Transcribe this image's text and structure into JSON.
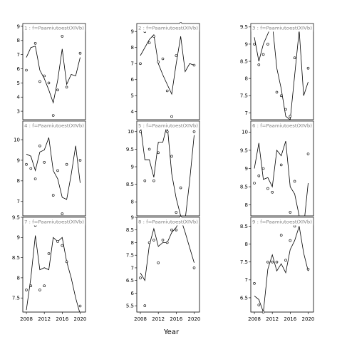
{
  "chart_data": {
    "type": "scatter",
    "xlabel": "Year",
    "xticks": [
      "2008",
      "2012",
      "2016",
      "2020"
    ],
    "xlim": [
      2007.2,
      2021.2
    ],
    "grid": false,
    "panels": [
      {
        "label": "1 : f=Paamiutoest(XIVb)",
        "ylim": [
          2.4,
          9.2
        ],
        "yticks": [
          3,
          4,
          5,
          6,
          7,
          8,
          9
        ],
        "points": [
          [
            2008,
            5.9
          ],
          [
            2009,
            9.0
          ],
          [
            2010,
            7.8
          ],
          [
            2011,
            5.1
          ],
          [
            2012,
            5.5
          ],
          [
            2013,
            5.0
          ],
          [
            2014,
            2.7
          ],
          [
            2015,
            4.5
          ],
          [
            2016,
            8.3
          ],
          [
            2017,
            4.7
          ],
          [
            2020,
            7.1
          ]
        ],
        "line": [
          [
            2008,
            6.8
          ],
          [
            2009,
            7.5
          ],
          [
            2010,
            7.6
          ],
          [
            2011,
            5.9
          ],
          [
            2012,
            5.3
          ],
          [
            2013,
            4.5
          ],
          [
            2014,
            3.6
          ],
          [
            2015,
            5.2
          ],
          [
            2016,
            7.4
          ],
          [
            2017,
            4.9
          ],
          [
            2018,
            5.6
          ],
          [
            2019,
            5.5
          ],
          [
            2020,
            6.8
          ]
        ]
      },
      {
        "label": "4 : f=Paamiutoest(XIVb)",
        "ylim": [
          6.3,
          10.9
        ],
        "yticks": [
          7,
          8,
          9,
          10
        ],
        "points": [
          [
            2008,
            8.8
          ],
          [
            2009,
            8.6
          ],
          [
            2010,
            8.1
          ],
          [
            2011,
            9.7
          ],
          [
            2012,
            8.9
          ],
          [
            2013,
            10.8
          ],
          [
            2014,
            7.3
          ],
          [
            2015,
            8.5
          ],
          [
            2016,
            6.4
          ],
          [
            2017,
            8.8
          ],
          [
            2020,
            9.0
          ]
        ],
        "line": [
          [
            2008,
            9.3
          ],
          [
            2009,
            9.2
          ],
          [
            2010,
            8.5
          ],
          [
            2011,
            9.4
          ],
          [
            2012,
            9.5
          ],
          [
            2013,
            10.1
          ],
          [
            2014,
            8.5
          ],
          [
            2015,
            8.1
          ],
          [
            2016,
            7.2
          ],
          [
            2017,
            7.1
          ],
          [
            2018,
            8.3
          ],
          [
            2019,
            9.7
          ],
          [
            2020,
            7.9
          ]
        ]
      },
      {
        "label": "7 : f=Paamiutoest(XIVb)",
        "ylim": [
          7.15,
          9.5
        ],
        "yticks": [
          7.5,
          8.0,
          8.5,
          9.0,
          9.5
        ],
        "points": [
          [
            2008,
            7.7
          ],
          [
            2009,
            7.8
          ],
          [
            2010,
            9.3
          ],
          [
            2011,
            7.7
          ],
          [
            2012,
            7.8
          ],
          [
            2013,
            8.6
          ],
          [
            2014,
            9.4
          ],
          [
            2015,
            8.9
          ],
          [
            2016,
            8.8
          ],
          [
            2017,
            8.4
          ],
          [
            2020,
            7.3
          ]
        ],
        "line": [
          [
            2008,
            7.2
          ],
          [
            2009,
            8.0
          ],
          [
            2010,
            9.05
          ],
          [
            2011,
            8.2
          ],
          [
            2012,
            8.25
          ],
          [
            2013,
            8.2
          ],
          [
            2014,
            9.0
          ],
          [
            2015,
            8.9
          ],
          [
            2016,
            9.0
          ],
          [
            2017,
            8.4
          ],
          [
            2018,
            8.0
          ],
          [
            2019,
            7.5
          ],
          [
            2020,
            7.1
          ]
        ]
      },
      {
        "label": "2 : f=Paamiutoest(XIVb)",
        "ylim": [
          3.5,
          9.5
        ],
        "yticks": [
          4,
          5,
          6,
          7,
          8,
          9
        ],
        "points": [
          [
            2008,
            7.0
          ],
          [
            2009,
            9.0
          ],
          [
            2010,
            8.3
          ],
          [
            2011,
            8.7
          ],
          [
            2012,
            7.1
          ],
          [
            2013,
            7.3
          ],
          [
            2014,
            5.3
          ],
          [
            2015,
            3.7
          ],
          [
            2016,
            7.5
          ],
          [
            2017,
            9.5
          ],
          [
            2020,
            6.9
          ]
        ],
        "line": [
          [
            2008,
            7.5
          ],
          [
            2009,
            8.0
          ],
          [
            2010,
            8.5
          ],
          [
            2011,
            8.8
          ],
          [
            2012,
            7.0
          ],
          [
            2013,
            6.3
          ],
          [
            2014,
            5.7
          ],
          [
            2015,
            5.1
          ],
          [
            2016,
            7.0
          ],
          [
            2017,
            8.7
          ],
          [
            2018,
            6.5
          ],
          [
            2019,
            7.0
          ],
          [
            2020,
            6.9
          ]
        ]
      },
      {
        "label": "5 : f=Paamiutoest(XIVb)",
        "ylim": [
          7.6,
          10.3
        ],
        "yticks": [
          8.0,
          8.5,
          9.0,
          9.5,
          10.0
        ],
        "points": [
          [
            2008,
            10.0
          ],
          [
            2009,
            8.6
          ],
          [
            2010,
            9.5
          ],
          [
            2011,
            8.6
          ],
          [
            2012,
            9.4
          ],
          [
            2013,
            10.2
          ],
          [
            2014,
            10.0
          ],
          [
            2015,
            9.3
          ],
          [
            2016,
            7.7
          ],
          [
            2017,
            8.4
          ],
          [
            2020,
            10.0
          ]
        ],
        "line": [
          [
            2008,
            10.2
          ],
          [
            2009,
            9.2
          ],
          [
            2010,
            9.2
          ],
          [
            2011,
            8.7
          ],
          [
            2012,
            9.7
          ],
          [
            2013,
            9.7
          ],
          [
            2014,
            10.2
          ],
          [
            2015,
            8.8
          ],
          [
            2016,
            8.1
          ],
          [
            2017,
            7.6
          ],
          [
            2018,
            7.5
          ],
          [
            2019,
            8.6
          ],
          [
            2020,
            9.9
          ]
        ]
      },
      {
        "label": "8 : f=Paamiutoest(XIVb)",
        "ylim": [
          5.25,
          9.0
        ],
        "yticks": [
          5.5,
          6.0,
          6.5,
          7.0,
          7.5,
          8.0,
          8.5,
          9.0
        ],
        "points": [
          [
            2008,
            6.6
          ],
          [
            2009,
            5.5
          ],
          [
            2010,
            8.0
          ],
          [
            2011,
            8.1
          ],
          [
            2012,
            7.2
          ],
          [
            2013,
            8.1
          ],
          [
            2014,
            8.0
          ],
          [
            2015,
            8.5
          ],
          [
            2016,
            8.5
          ],
          [
            2017,
            9.0
          ],
          [
            2020,
            7.0
          ]
        ],
        "line": [
          [
            2008,
            6.8
          ],
          [
            2009,
            6.5
          ],
          [
            2010,
            7.9
          ],
          [
            2011,
            8.55
          ],
          [
            2012,
            7.85
          ],
          [
            2013,
            8.0
          ],
          [
            2014,
            8.0
          ],
          [
            2015,
            8.4
          ],
          [
            2016,
            8.6
          ],
          [
            2017,
            8.95
          ],
          [
            2018,
            8.4
          ],
          [
            2019,
            7.8
          ],
          [
            2020,
            7.2
          ]
        ]
      },
      {
        "label": "3 : f=Paamiutoest(XIVb)",
        "ylim": [
          6.8,
          9.6
        ],
        "yticks": [
          7.0,
          7.5,
          8.0,
          8.5,
          9.0,
          9.5
        ],
        "points": [
          [
            2008,
            9.0
          ],
          [
            2009,
            8.4
          ],
          [
            2010,
            8.7
          ],
          [
            2011,
            9.0
          ],
          [
            2012,
            9.5
          ],
          [
            2013,
            7.6
          ],
          [
            2014,
            7.5
          ],
          [
            2015,
            7.1
          ],
          [
            2016,
            6.9
          ],
          [
            2017,
            8.6
          ],
          [
            2020,
            8.3
          ]
        ],
        "line": [
          [
            2008,
            9.2
          ],
          [
            2009,
            8.5
          ],
          [
            2010,
            9.0
          ],
          [
            2011,
            9.3
          ],
          [
            2012,
            9.6
          ],
          [
            2013,
            8.3
          ],
          [
            2014,
            7.7
          ],
          [
            2015,
            6.9
          ],
          [
            2016,
            6.8
          ],
          [
            2017,
            8.1
          ],
          [
            2018,
            9.4
          ],
          [
            2019,
            7.5
          ],
          [
            2020,
            7.9
          ]
        ]
      },
      {
        "label": "6 : f=Paamiutoest(XIVb)",
        "ylim": [
          7.7,
          10.3
        ],
        "yticks": [
          8.0,
          8.5,
          9.0,
          9.5,
          10.0
        ],
        "points": [
          [
            2008,
            8.6
          ],
          [
            2009,
            8.8
          ],
          [
            2010,
            9.0
          ],
          [
            2011,
            8.45
          ],
          [
            2012,
            8.35
          ],
          [
            2013,
            10.2
          ],
          [
            2014,
            9.1
          ],
          [
            2015,
            10.25
          ],
          [
            2016,
            7.8
          ],
          [
            2017,
            8.65
          ],
          [
            2020,
            9.4
          ]
        ],
        "line": [
          [
            2008,
            9.0
          ],
          [
            2009,
            9.7
          ],
          [
            2010,
            8.7
          ],
          [
            2011,
            8.75
          ],
          [
            2012,
            8.5
          ],
          [
            2013,
            9.5
          ],
          [
            2014,
            9.35
          ],
          [
            2015,
            9.75
          ],
          [
            2016,
            8.5
          ],
          [
            2017,
            8.3
          ],
          [
            2018,
            7.7
          ],
          [
            2019,
            7.4
          ],
          [
            2020,
            8.6
          ]
        ]
      },
      {
        "label": "9 : f=Paamiutoest(XIVb)",
        "ylim": [
          6.1,
          8.75
        ],
        "yticks": [
          6.5,
          7.0,
          7.5,
          8.0,
          8.5
        ],
        "points": [
          [
            2008,
            6.9
          ],
          [
            2009,
            6.3
          ],
          [
            2010,
            6.1
          ],
          [
            2011,
            7.5
          ],
          [
            2012,
            7.5
          ],
          [
            2013,
            7.5
          ],
          [
            2014,
            8.25
          ],
          [
            2015,
            7.55
          ],
          [
            2016,
            8.1
          ],
          [
            2017,
            8.5
          ],
          [
            2020,
            7.3
          ]
        ],
        "line": [
          [
            2008,
            6.55
          ],
          [
            2009,
            6.45
          ],
          [
            2010,
            6.1
          ],
          [
            2011,
            7.3
          ],
          [
            2012,
            7.7
          ],
          [
            2013,
            7.25
          ],
          [
            2014,
            7.45
          ],
          [
            2015,
            7.2
          ],
          [
            2016,
            7.85
          ],
          [
            2017,
            8.1
          ],
          [
            2018,
            8.5
          ],
          [
            2019,
            7.75
          ],
          [
            2020,
            7.25
          ]
        ]
      }
    ]
  }
}
